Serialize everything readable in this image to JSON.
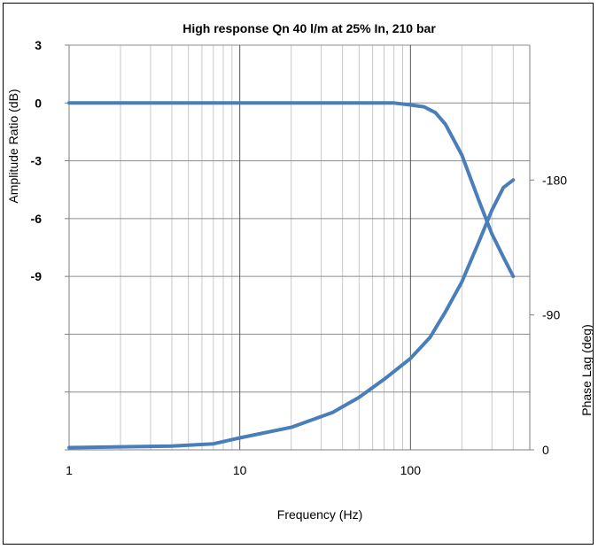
{
  "chart_data": {
    "type": "line",
    "title": "High response Qn 40 l/m at 25% In, 210 bar",
    "xlabel": "Frequency (Hz)",
    "ylabel": "Amplitude Ratio (dB)",
    "y2label": "Phase Lag (deg)",
    "xscale": "log",
    "xlim": [
      1,
      500
    ],
    "ylim": [
      -18,
      3
    ],
    "y2lim": [
      0,
      270
    ],
    "grid": true,
    "legend": "none",
    "xticks": [
      {
        "value": 1,
        "label": "1"
      },
      {
        "value": 10,
        "label": "10"
      },
      {
        "value": 100,
        "label": "100"
      }
    ],
    "yticks": [
      {
        "value": 3,
        "label": "3"
      },
      {
        "value": 0,
        "label": "0"
      },
      {
        "value": -3,
        "label": "-3"
      },
      {
        "value": -6,
        "label": "-6"
      },
      {
        "value": -9,
        "label": "-9"
      },
      {
        "value": -12,
        "label": ""
      },
      {
        "value": -15,
        "label": ""
      },
      {
        "value": -18,
        "label": ""
      }
    ],
    "y2ticks": [
      {
        "value": 0,
        "label": "0"
      },
      {
        "value": 90,
        "label": "-90"
      },
      {
        "value": 180,
        "label": "-180"
      }
    ],
    "series": [
      {
        "axis": "left",
        "color": "#4a7ebb",
        "x": [
          1,
          2,
          5,
          10,
          20,
          50,
          80,
          100,
          120,
          140,
          160,
          200,
          250,
          300,
          350,
          400
        ],
        "y": [
          0,
          0,
          0,
          0,
          0,
          0,
          0,
          -0.1,
          -0.2,
          -0.5,
          -1.1,
          -2.7,
          -5.0,
          -6.8,
          -8.0,
          -9.0
        ]
      },
      {
        "axis": "right",
        "color": "#4a7ebb",
        "x": [
          1,
          2,
          4,
          7,
          10,
          20,
          35,
          50,
          70,
          100,
          130,
          160,
          200,
          250,
          300,
          350,
          400
        ],
        "y": [
          1.5,
          2,
          2.5,
          4,
          8,
          15,
          25,
          35,
          47,
          61,
          75,
          92,
          112,
          138,
          160,
          175,
          180
        ]
      }
    ]
  }
}
